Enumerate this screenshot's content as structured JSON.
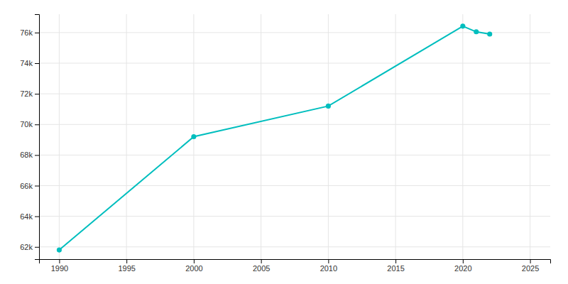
{
  "chart_data": {
    "type": "line",
    "x": [
      1990,
      2000,
      2010,
      2020,
      2021,
      2022
    ],
    "values": [
      61800,
      69200,
      71200,
      76420,
      76050,
      75900
    ],
    "color": "#00BEBE",
    "marker": "circle",
    "xlim": [
      1988.5,
      2026.5
    ],
    "ylim": [
      61200,
      77200
    ],
    "xticks": [
      1990,
      1995,
      2000,
      2005,
      2010,
      2015,
      2020,
      2025
    ],
    "yticks": [
      {
        "value": 62000,
        "label": "62k"
      },
      {
        "value": 64000,
        "label": "64k"
      },
      {
        "value": 66000,
        "label": "66k"
      },
      {
        "value": 68000,
        "label": "68k"
      },
      {
        "value": 70000,
        "label": "70k"
      },
      {
        "value": 72000,
        "label": "72k"
      },
      {
        "value": 74000,
        "label": "74k"
      },
      {
        "value": 76000,
        "label": "76k"
      }
    ],
    "grid": true
  }
}
